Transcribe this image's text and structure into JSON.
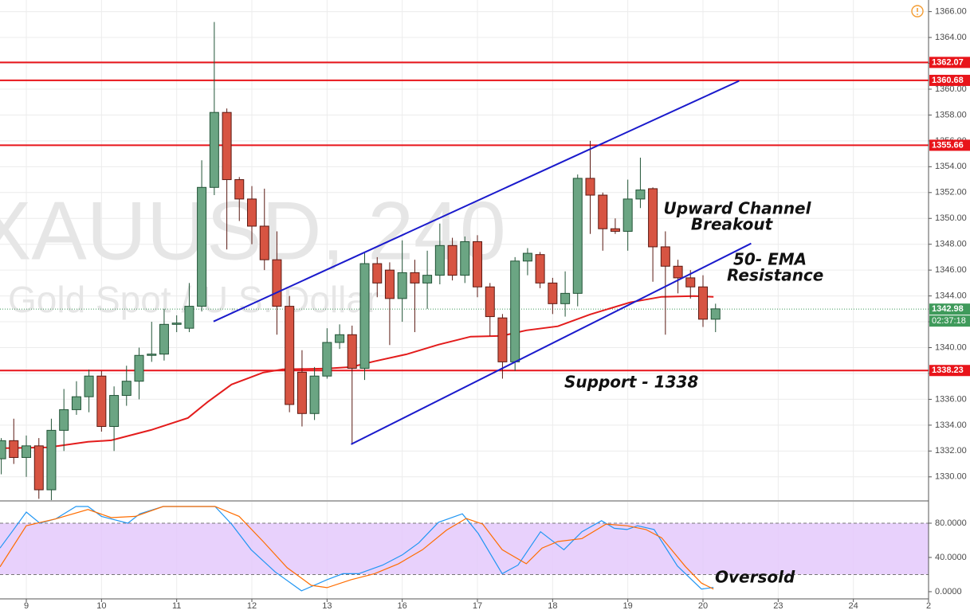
{
  "chart_data": [
    {
      "type": "candlestick",
      "title": "XAUUSD, 240",
      "subtitle": "Gold Spot / U.S. Dollar",
      "x": [
        -0.333,
        -0.167,
        0,
        0.167,
        0.333,
        0.5,
        0.667,
        0.833,
        1,
        1.167,
        1.333,
        1.5,
        1.667,
        1.833,
        2,
        2.167,
        2.333,
        2.5,
        2.667,
        2.833,
        3,
        3.167,
        3.333,
        3.5,
        3.667,
        3.833,
        4,
        4.167,
        4.333,
        4.5,
        4.667,
        4.833,
        5,
        5.167,
        5.333,
        5.5,
        5.667,
        5.833,
        6,
        6.167,
        6.333,
        6.5,
        6.667,
        6.833,
        7,
        7.167,
        7.333,
        7.5,
        7.667,
        7.833,
        8,
        8.167,
        8.333,
        8.5,
        8.667,
        8.833,
        9,
        9.167
      ],
      "open": [
        1331.4,
        1332.8,
        1331.5,
        1332.4,
        1329,
        1333.6,
        1335.2,
        1336.2,
        1337.8,
        1333.9,
        1336.3,
        1337.4,
        1339.4,
        1339.5,
        1341.8,
        1341.5,
        1343.2,
        1352.4,
        1358.2,
        1353,
        1351.5,
        1349.4,
        1346.8,
        1343.2,
        1338.1,
        1334.9,
        1337.8,
        1340.4,
        1341,
        1338.4,
        1346.5,
        1346,
        1343.8,
        1345.8,
        1345,
        1345.6,
        1347.9,
        1345.6,
        1348.2,
        1344.7,
        1342.3,
        1338.9,
        1346.7,
        1347.2,
        1345,
        1343.4,
        1344.2,
        1353.1,
        1351.8,
        1349.2,
        1349,
        1351.5,
        1352.3,
        1347.8,
        1346.3,
        1345.4,
        1344.7,
        1342.2
      ],
      "high": [
        1333,
        1334.5,
        1333.2,
        1333,
        1334.5,
        1336.8,
        1337.4,
        1338.3,
        1338.2,
        1337,
        1338.6,
        1340,
        1342,
        1343,
        1342.5,
        1345,
        1354.5,
        1365.2,
        1358.5,
        1353.2,
        1352.5,
        1352.3,
        1349,
        1344,
        1339.8,
        1338.5,
        1341.5,
        1341.8,
        1341.7,
        1347.3,
        1347,
        1346.6,
        1348.3,
        1346.8,
        1347.5,
        1349.6,
        1348.5,
        1348.6,
        1348.7,
        1345,
        1342.6,
        1347,
        1347.7,
        1347.4,
        1345.4,
        1345.9,
        1353.4,
        1356,
        1352,
        1350,
        1353,
        1354.7,
        1352.4,
        1349,
        1346.8,
        1346,
        1345.6,
        1343.4
      ],
      "low": [
        1330.2,
        1331,
        1330,
        1328.3,
        1328.2,
        1332,
        1334.8,
        1335,
        1333.5,
        1332,
        1335.5,
        1336,
        1338.9,
        1339,
        1341.2,
        1341.2,
        1342.8,
        1351.8,
        1347.6,
        1349.8,
        1348,
        1346,
        1341,
        1335,
        1333.9,
        1334.4,
        1337.6,
        1339.9,
        1332.5,
        1337.5,
        1343.9,
        1340.2,
        1342,
        1341.2,
        1343,
        1344.9,
        1345.2,
        1345,
        1343.9,
        1340.9,
        1337.6,
        1338.2,
        1345.6,
        1344.6,
        1342.6,
        1342.4,
        1343.2,
        1348.8,
        1347.5,
        1348.8,
        1347.5,
        1350.8,
        1345.1,
        1341,
        1344.2,
        1343.8,
        1341.6,
        1341.2
      ],
      "close": [
        1332.8,
        1331.5,
        1332.4,
        1329,
        1333.6,
        1335.2,
        1336.2,
        1337.8,
        1333.9,
        1336.3,
        1337.4,
        1339.4,
        1339.5,
        1341.8,
        1341.9,
        1343.2,
        1352.4,
        1358.2,
        1353,
        1351.5,
        1349.4,
        1346.8,
        1343.2,
        1335.6,
        1334.9,
        1337.8,
        1340.4,
        1341,
        1338.4,
        1346.5,
        1345,
        1343.8,
        1345.8,
        1345,
        1345.6,
        1347.9,
        1345.6,
        1348.2,
        1344.7,
        1342.4,
        1338.9,
        1346.7,
        1347.3,
        1345,
        1343.4,
        1344.2,
        1353.1,
        1351.8,
        1349.2,
        1349,
        1351.5,
        1352.2,
        1347.8,
        1346.3,
        1345.4,
        1344.7,
        1342.2,
        1343
      ],
      "up_color": "#6ba583",
      "down_color": "#d75442",
      "ema": {
        "color": "#e31c1c",
        "x": [
          -0.35,
          0.29,
          0.82,
          1.13,
          1.66,
          2.15,
          2.41,
          2.73,
          3.15,
          3.41,
          4.0,
          4.32,
          4.63,
          5.06,
          5.48,
          5.91,
          6.33,
          6.65,
          7.07,
          7.5,
          8.03,
          8.45,
          8.88,
          9.14
        ],
        "values": [
          1332.21,
          1332.28,
          1332.71,
          1332.83,
          1333.63,
          1334.56,
          1335.79,
          1337.15,
          1338.07,
          1338.32,
          1338.38,
          1338.5,
          1338.94,
          1339.49,
          1340.23,
          1340.85,
          1340.91,
          1341.34,
          1341.65,
          1342.57,
          1343.5,
          1343.93,
          1343.99,
          1343.93
        ]
      },
      "channel": {
        "color": "#1a1acc",
        "lines": [
          {
            "x": [
              2.49,
              9.48
            ],
            "y": [
              1342.02,
              1360.64
            ]
          },
          {
            "x": [
              4.32,
              9.64
            ],
            "y": [
              1332.52,
              1348.06
            ]
          }
        ]
      },
      "levels": [
        {
          "value": 1362.07,
          "color": "#e8141a"
        },
        {
          "value": 1360.68,
          "color": "#e8141a"
        },
        {
          "value": 1355.66,
          "color": "#e8141a"
        },
        {
          "value": 1338.23,
          "color": "#e8141a"
        }
      ],
      "last": {
        "value": 1342.98,
        "countdown": "02:37:18",
        "color": "#3f9a5b"
      },
      "annotations": [
        [
          "Upward Channel",
          "Breakout"
        ],
        [
          "50- EMA",
          "Resistance"
        ],
        "Support - 1338"
      ],
      "xlim": [
        -0.35,
        12.0
      ],
      "ylim": [
        1328.2,
        1366.9
      ],
      "yticks": [
        {
          "value": 1330,
          "label": "1330.00"
        },
        {
          "value": 1332,
          "label": "1332.00"
        },
        {
          "value": 1334,
          "label": "1334.00"
        },
        {
          "value": 1336,
          "label": "1336.00"
        },
        {
          "value": 1338,
          "label": "1338.00"
        },
        {
          "value": 1340,
          "label": "1340.00"
        },
        {
          "value": 1342,
          "label": "1342.00"
        },
        {
          "value": 1344,
          "label": "1344.00"
        },
        {
          "value": 1346,
          "label": "1346.00"
        },
        {
          "value": 1348,
          "label": "1348.00"
        },
        {
          "value": 1350,
          "label": "1350.00"
        },
        {
          "value": 1352,
          "label": "1352.00"
        },
        {
          "value": 1354,
          "label": "1354.00"
        },
        {
          "value": 1356,
          "label": "1356.00"
        },
        {
          "value": 1358,
          "label": "1358.00"
        },
        {
          "value": 1360,
          "label": "1360.00"
        },
        {
          "value": 1362,
          "label": "1362.00"
        },
        {
          "value": 1364,
          "label": "1364.00"
        },
        {
          "value": 1366,
          "label": "1366.00"
        }
      ],
      "grid": true
    },
    {
      "type": "line",
      "annotation": "Oversold",
      "series": [
        {
          "color": "#2196f3",
          "x": [
            -0.35,
            -0.19,
            0,
            0.18,
            0.39,
            0.66,
            0.82,
            1.0,
            1.35,
            1.51,
            1.82,
            2.51,
            2.73,
            2.99,
            3.31,
            3.66,
            4.0,
            4.21,
            4.42,
            4.74,
            5.0,
            5.22,
            5.48,
            5.8,
            6.01,
            6.33,
            6.54,
            6.84,
            7.15,
            7.39,
            7.65,
            7.82,
            7.99,
            8.13,
            8.35,
            8.66,
            8.98,
            9.14
          ],
          "values": [
            51,
            70,
            93,
            80,
            85,
            99.5,
            99.5,
            88,
            80,
            91,
            99.5,
            99.5,
            79,
            49,
            23,
            1,
            14,
            21,
            21,
            31,
            43,
            57,
            81,
            91,
            68,
            21,
            31,
            70,
            49,
            70,
            83,
            74,
            72.6,
            77,
            72.6,
            30,
            3,
            5
          ]
        },
        {
          "color": "#ff6d00",
          "x": [
            -0.35,
            0,
            0.39,
            0.82,
            1.13,
            1.45,
            1.82,
            2.51,
            2.83,
            3.15,
            3.47,
            3.79,
            4.0,
            4.32,
            4.63,
            4.95,
            5.27,
            5.59,
            5.85,
            6.07,
            6.33,
            6.65,
            6.86,
            7.07,
            7.39,
            7.71,
            7.99,
            8.24,
            8.45,
            8.77,
            8.98,
            9.14
          ],
          "values": [
            29,
            77,
            85,
            96,
            86.5,
            88,
            99.5,
            99.5,
            88,
            58.6,
            28,
            7.4,
            4.7,
            14,
            21,
            32.6,
            49,
            72,
            85.6,
            79,
            49,
            32.6,
            51,
            58.6,
            62,
            79,
            77,
            72.6,
            63,
            29,
            10,
            3
          ]
        }
      ],
      "band": [
        20,
        80
      ],
      "band_color": "#e4c9fb",
      "xlim": [
        -0.35,
        12.0
      ],
      "ylim": [
        -8.4,
        105.1
      ],
      "yticks": [
        {
          "value": 0,
          "label": "0.0000"
        },
        {
          "value": 40,
          "label": "40.0000"
        },
        {
          "value": 80,
          "label": "80.0000"
        }
      ],
      "xticks": [
        {
          "value": 0,
          "label": "9"
        },
        {
          "value": 1,
          "label": "10"
        },
        {
          "value": 2,
          "label": "11"
        },
        {
          "value": 3,
          "label": "12"
        },
        {
          "value": 4,
          "label": "13"
        },
        {
          "value": 5,
          "label": "16"
        },
        {
          "value": 6,
          "label": "17"
        },
        {
          "value": 7,
          "label": "18"
        },
        {
          "value": 8,
          "label": "19"
        },
        {
          "value": 9,
          "label": "20"
        },
        {
          "value": 10,
          "label": "23"
        },
        {
          "value": 11,
          "label": "24"
        },
        {
          "value": 12,
          "label": "2"
        }
      ]
    }
  ]
}
